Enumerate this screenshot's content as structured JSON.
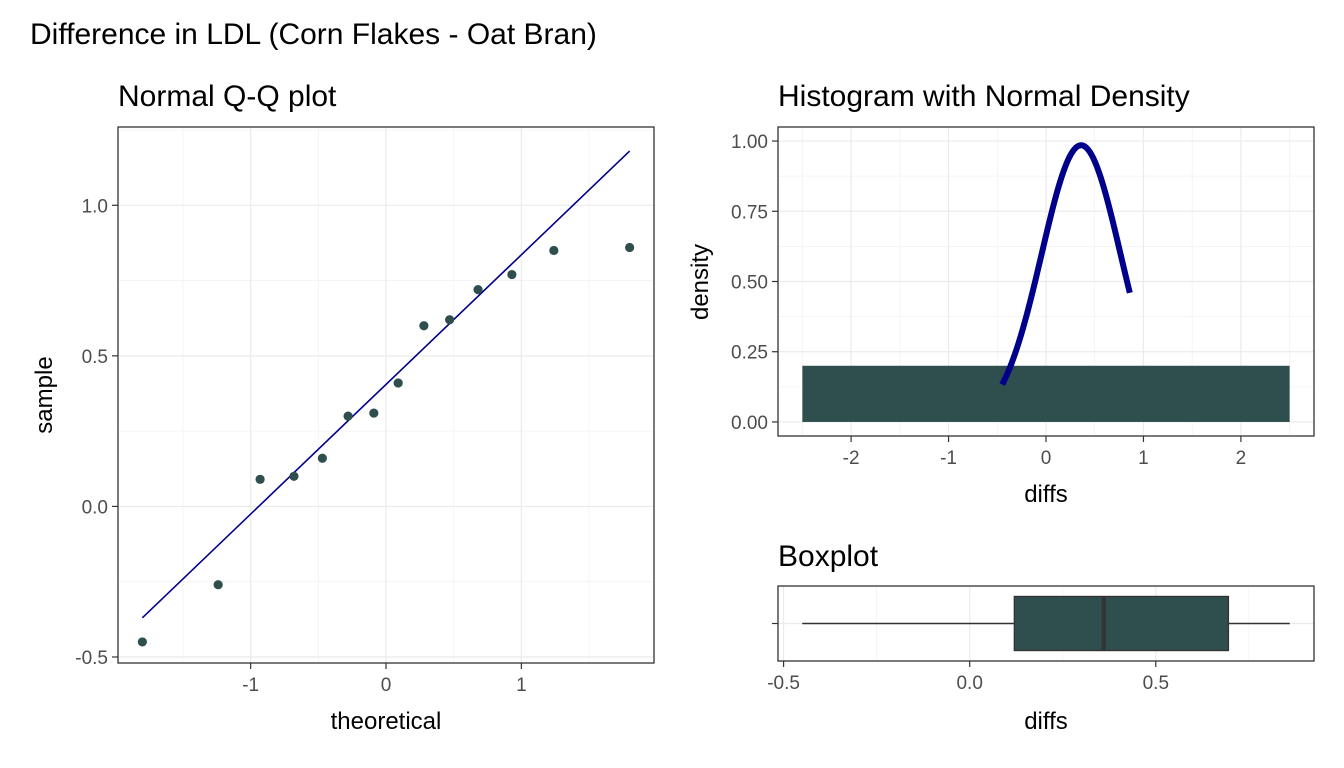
{
  "title": "Difference in LDL (Corn Flakes - Oat Bran)",
  "colors": {
    "point": "#2f4f4f",
    "fill": "#2f4f4f",
    "line": "#00008b",
    "density": "#00008b",
    "border": "#333333"
  },
  "chart_data": [
    {
      "type": "scatter",
      "title": "Normal Q-Q plot",
      "xlabel": "theoretical",
      "ylabel": "sample",
      "xlim": [
        -1.98,
        1.98
      ],
      "ylim": [
        -0.52,
        1.26
      ],
      "xticks": [
        -1,
        0,
        1
      ],
      "xtick_labels": [
        "-1",
        "0",
        "1"
      ],
      "yticks": [
        -0.5,
        0.0,
        0.5,
        1.0
      ],
      "ytick_labels": [
        "-0.5",
        "0.0",
        "0.5",
        "1.0"
      ],
      "grid": true,
      "x": [
        -1.8,
        -1.24,
        -0.93,
        -0.68,
        -0.47,
        -0.28,
        -0.09,
        0.09,
        0.28,
        0.47,
        0.68,
        0.93,
        1.24,
        1.8
      ],
      "y": [
        -0.45,
        -0.26,
        0.09,
        0.1,
        0.16,
        0.3,
        0.31,
        0.41,
        0.6,
        0.62,
        0.72,
        0.77,
        0.85,
        0.86
      ],
      "reference_line": {
        "x": [
          -1.8,
          1.8
        ],
        "y": [
          -0.37,
          1.18
        ]
      }
    },
    {
      "type": "bar",
      "title": "Histogram with Normal Density",
      "xlabel": "diffs",
      "ylabel": "density",
      "xlim": [
        -2.75,
        2.75
      ],
      "ylim": [
        -0.05,
        1.05
      ],
      "xticks": [
        -2,
        -1,
        0,
        1,
        2
      ],
      "xtick_labels": [
        "-2",
        "-1",
        "0",
        "1",
        "2"
      ],
      "yticks": [
        0.0,
        0.25,
        0.5,
        0.75,
        1.0
      ],
      "ytick_labels": [
        "0.00",
        "0.25",
        "0.50",
        "0.75",
        "1.00"
      ],
      "grid": true,
      "bins": [
        {
          "xmin": -2.5,
          "xmax": 2.5,
          "density": 0.2
        }
      ],
      "density_curve": {
        "type": "normal",
        "mean": 0.36,
        "sd": 0.405,
        "x_range": [
          -0.45,
          0.86
        ]
      }
    },
    {
      "type": "boxplot",
      "title": "Boxplot",
      "xlabel": "diffs",
      "xlim": [
        -0.515,
        0.925
      ],
      "xticks": [
        -0.5,
        0.0,
        0.5
      ],
      "xtick_labels": [
        "-0.5",
        "0.0",
        "0.5"
      ],
      "grid": true,
      "min": -0.45,
      "q1": 0.12,
      "median": 0.36,
      "q3": 0.695,
      "max": 0.86
    }
  ]
}
